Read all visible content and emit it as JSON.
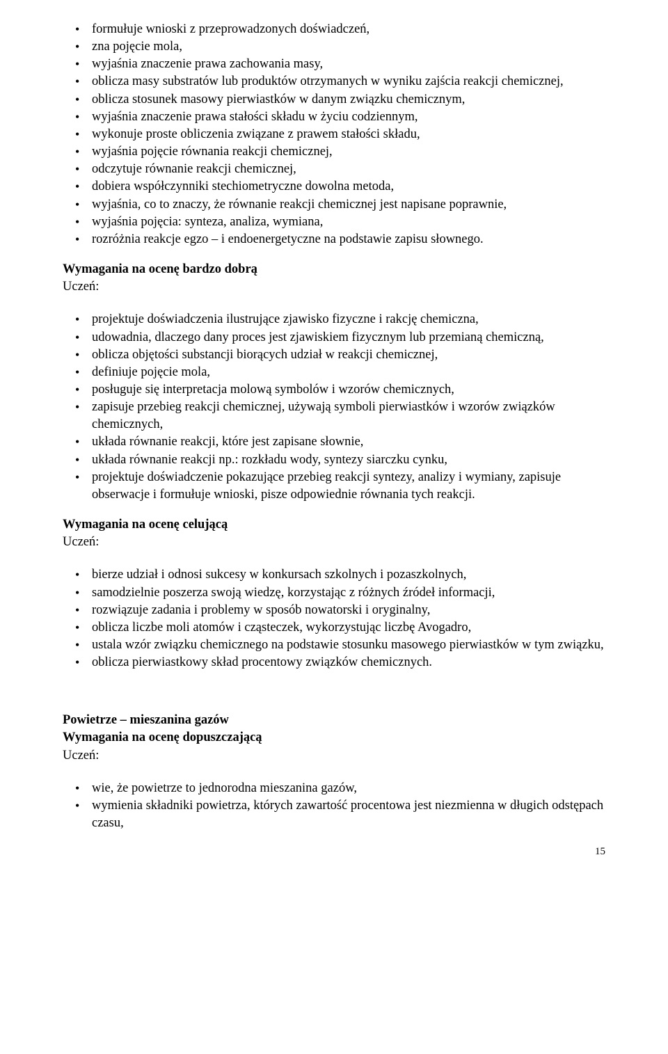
{
  "list1": [
    "formułuje wnioski z przeprowadzonych doświadczeń,",
    "zna pojęcie mola,",
    "wyjaśnia znaczenie prawa zachowania masy,",
    "oblicza masy substratów lub produktów otrzymanych w wyniku zajścia reakcji chemicznej,",
    "oblicza stosunek masowy pierwiastków w danym związku chemicznym,",
    "wyjaśnia znaczenie prawa stałości składu w życiu codziennym,",
    "wykonuje proste obliczenia związane z prawem stałości składu,",
    "wyjaśnia pojęcie równania reakcji chemicznej,",
    "odczytuje równanie reakcji chemicznej,",
    "dobiera współczynniki stechiometryczne dowolna metoda,",
    "wyjaśnia, co to znaczy, że równanie reakcji chemicznej jest napisane poprawnie,",
    "wyjaśnia pojęcia: synteza, analiza, wymiana,",
    "rozróżnia reakcje egzo – i endoenergetyczne na podstawie zapisu słownego."
  ],
  "heading1": "Wymagania na ocenę bardzo dobrą",
  "uczen": "Uczeń:",
  "list2": [
    "projektuje doświadczenia ilustrujące zjawisko fizyczne i rakcję chemiczna,",
    "udowadnia, dlaczego dany proces jest zjawiskiem fizycznym lub przemianą chemiczną,",
    "oblicza objętości substancji biorących udział w reakcji chemicznej,",
    "definiuje pojęcie mola,",
    "posługuje się interpretacja molową symbolów i wzorów chemicznych,",
    "zapisuje przebieg reakcji chemicznej, używają symboli pierwiastków i wzorów związków chemicznych,",
    "układa równanie reakcji, które jest zapisane słownie,",
    "układa równanie reakcji np.: rozkładu wody, syntezy siarczku cynku,",
    "projektuje doświadczenie pokazujące przebieg reakcji syntezy, analizy i wymiany, zapisuje obserwacje i formułuje wnioski, pisze odpowiednie równania tych reakcji."
  ],
  "heading2": "Wymagania na ocenę celującą",
  "list3": [
    "bierze udział i odnosi sukcesy w konkursach szkolnych i pozaszkolnych,",
    "samodzielnie poszerza swoją wiedzę, korzystając z różnych źródeł informacji,",
    "rozwiązuje zadania i problemy w sposób nowatorski i oryginalny,",
    "oblicza liczbe moli atomów i cząsteczek, wykorzystując liczbę Avogadro,",
    "ustala wzór związku chemicznego na podstawie stosunku masowego pierwiastków w tym związku,",
    "oblicza pierwiastkowy skład procentowy związków chemicznych."
  ],
  "heading3a": "Powietrze – mieszanina gazów",
  "heading3b": "Wymagania na ocenę dopuszczającą",
  "list4": [
    "wie, że powietrze to jednorodna mieszanina gazów,",
    "wymienia składniki powietrza, których zawartość procentowa jest niezmienna w długich odstępach czasu,"
  ],
  "pageNumber": "15"
}
